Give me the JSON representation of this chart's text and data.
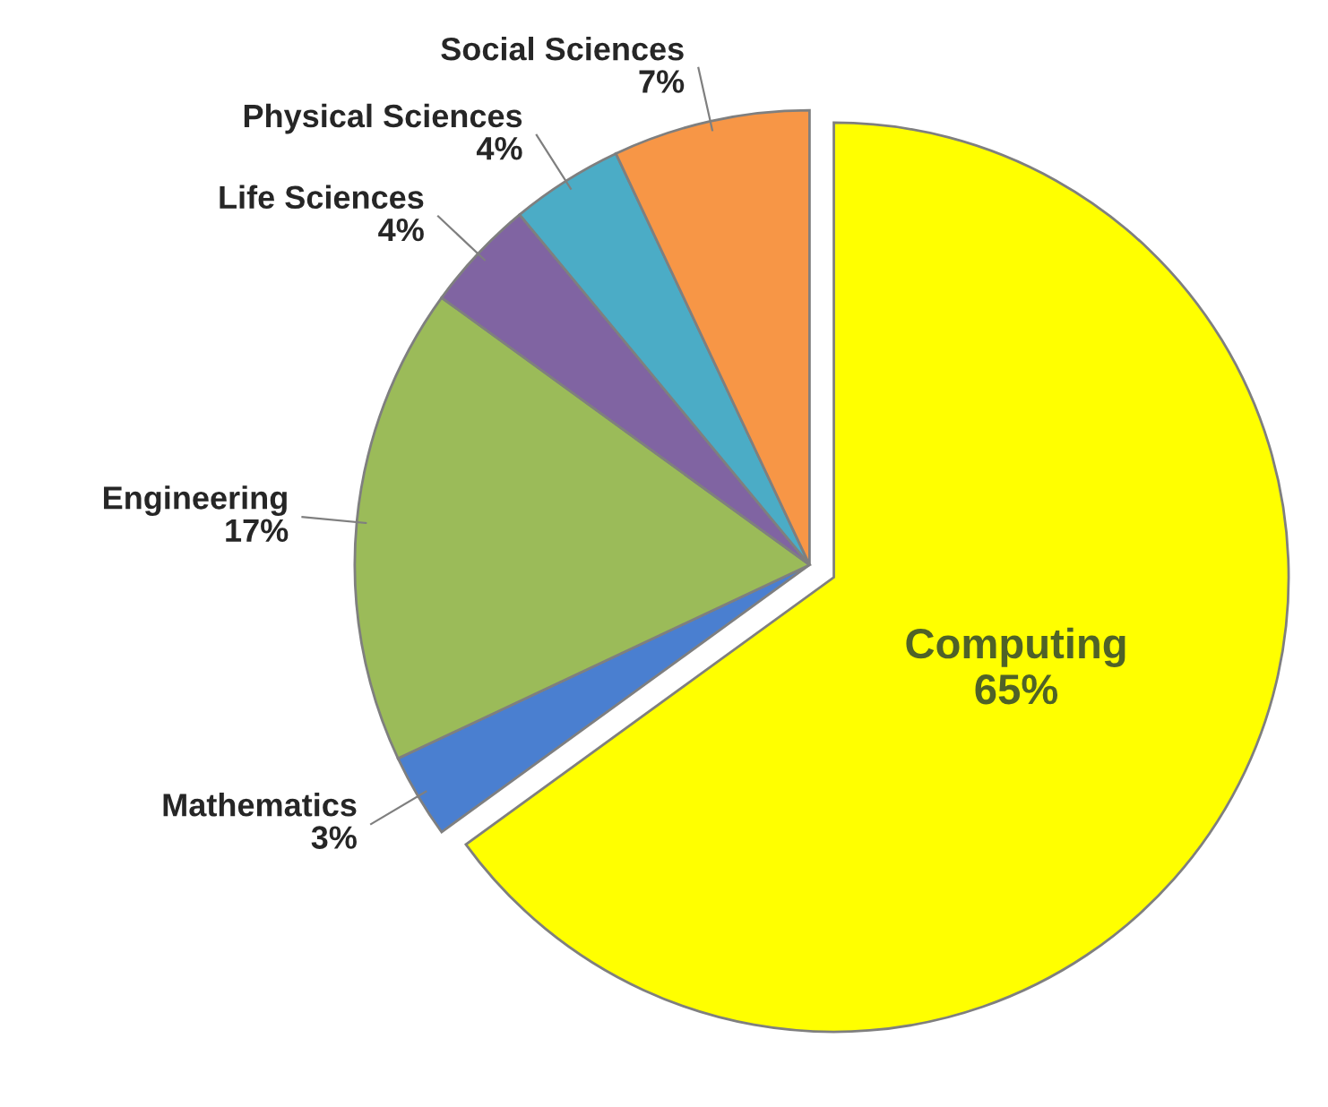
{
  "chart_data": {
    "type": "pie",
    "categories": [
      "Computing",
      "Mathematics",
      "Engineering",
      "Life Sciences",
      "Physical Sciences",
      "Social Sciences"
    ],
    "values": [
      65,
      3,
      17,
      4,
      4,
      7
    ],
    "value_labels": [
      "65%",
      "3%",
      "17%",
      "4%",
      "4%",
      "7%"
    ],
    "colors": [
      "#ffff00",
      "#4a7fd0",
      "#9bbb59",
      "#8064a2",
      "#4bacc6",
      "#f79646"
    ]
  }
}
